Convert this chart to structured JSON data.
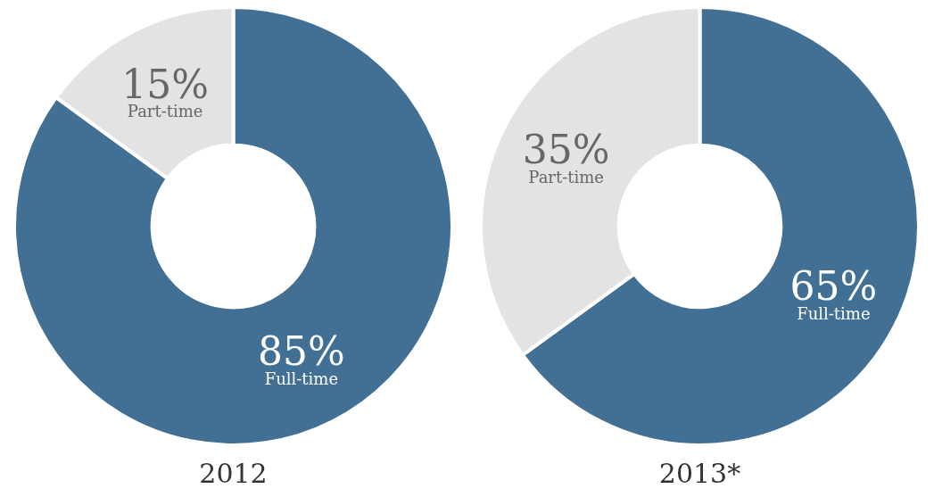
{
  "chart_data": [
    {
      "type": "donut",
      "title": "2012",
      "categories": [
        "Full-time",
        "Part-time"
      ],
      "values": [
        85,
        15
      ],
      "colors": [
        "#426f94",
        "#e3e3e3"
      ],
      "value_labels": [
        "85%",
        "15%"
      ],
      "legend": false
    },
    {
      "type": "donut",
      "title": "2013*",
      "categories": [
        "Full-time",
        "Part-time"
      ],
      "values": [
        65,
        35
      ],
      "colors": [
        "#426f94",
        "#e3e3e3"
      ],
      "value_labels": [
        "65%",
        "35%"
      ],
      "legend": false
    }
  ]
}
